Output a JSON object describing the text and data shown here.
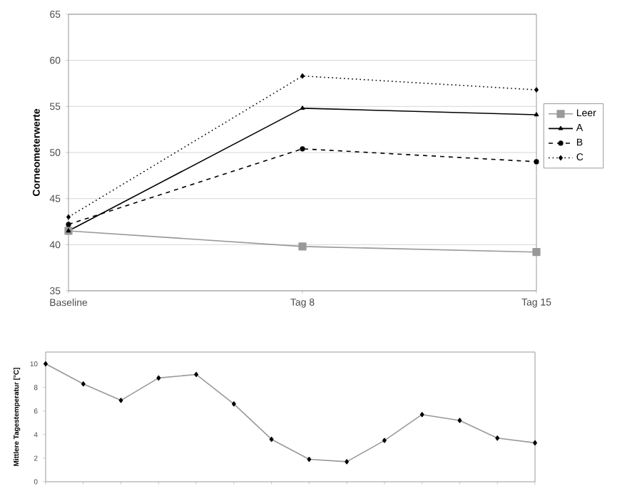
{
  "chart_data": [
    {
      "type": "line",
      "ylabel": "Corneometerwerte",
      "categories": [
        "Baseline",
        "Tag 8",
        "Tag 15"
      ],
      "ylim": [
        35,
        65
      ],
      "yticks": [
        35,
        40,
        45,
        50,
        55,
        60,
        65
      ],
      "grid": "y",
      "legend": "right",
      "series": [
        {
          "name": "Leer",
          "color": "#999999",
          "marker": "square",
          "line_style": "solid",
          "values": [
            41.5,
            39.8,
            39.2
          ]
        },
        {
          "name": "A",
          "color": "#000000",
          "marker": "triangle",
          "line_style": "solid",
          "values": [
            41.5,
            54.8,
            54.1
          ]
        },
        {
          "name": "B",
          "color": "#000000",
          "marker": "circle",
          "line_style": "dashed",
          "values": [
            42.2,
            50.4,
            49.0
          ]
        },
        {
          "name": "C",
          "color": "#000000",
          "marker": "diamond",
          "line_style": "dotted",
          "values": [
            43.0,
            58.3,
            56.8
          ]
        }
      ]
    },
    {
      "type": "line",
      "ylabel": "Mittlere Tagestemperatur [°C]",
      "categories": [
        null,
        null,
        null,
        null,
        null,
        null,
        null,
        null,
        null,
        null,
        null,
        null,
        null,
        null
      ],
      "ylim": [
        0,
        11
      ],
      "yticks": [
        0,
        2,
        4,
        6,
        8,
        10
      ],
      "tick_labels": "y",
      "marker": "diamond",
      "line_style": "solid",
      "series": [
        {
          "color": "#999999",
          "values": [
            10,
            8.3,
            6.9,
            8.8,
            9.1,
            6.6,
            3.6,
            1.9,
            1.7,
            3.5,
            5.7,
            5.2,
            3.7,
            3.3
          ]
        }
      ]
    }
  ]
}
